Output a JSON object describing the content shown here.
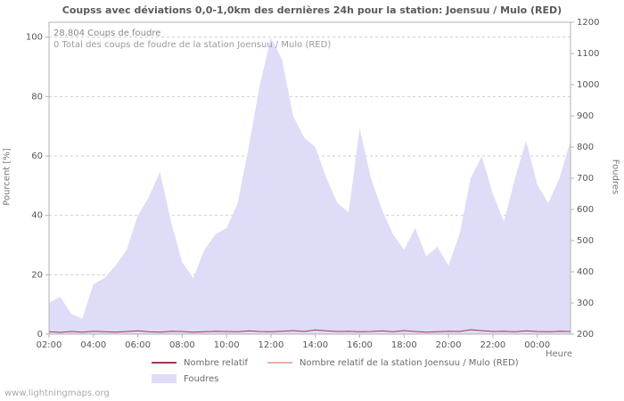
{
  "title": "Coupss avec déviations 0,0-1,0km des dernières 24h pour la station: Joensuu / Mulo (RED)",
  "annotations": {
    "line1": "28.804  Coups de foudre",
    "line2": "0 Total des coups de foudre de la station Joensuu / Mulo (RED)"
  },
  "watermark": "www.lightningmaps.org",
  "legend": {
    "items": [
      {
        "label": "Nombre relatif",
        "swatch": "line",
        "color": "#a33b4b"
      },
      {
        "label": "Nombre relatif de la station Joensuu / Mulo (RED)",
        "swatch": "line",
        "color": "#eab4a6"
      },
      {
        "label": "Foudres",
        "swatch": "area",
        "color": "#dedcf7"
      }
    ]
  },
  "chart_data": {
    "type": "area",
    "title": "Coupss avec déviations 0,0-1,0km des dernières 24h pour la station: Joensuu / Mulo (RED)",
    "categories": [
      "02:00",
      "02:30",
      "03:00",
      "03:30",
      "04:00",
      "04:30",
      "05:00",
      "05:30",
      "06:00",
      "06:30",
      "07:00",
      "07:30",
      "08:00",
      "08:30",
      "09:00",
      "09:30",
      "10:00",
      "10:30",
      "11:00",
      "11:30",
      "12:00",
      "12:30",
      "13:00",
      "13:30",
      "14:00",
      "14:30",
      "15:00",
      "15:30",
      "16:00",
      "16:30",
      "17:00",
      "17:30",
      "18:00",
      "18:30",
      "19:00",
      "19:30",
      "20:00",
      "20:30",
      "21:00",
      "21:30",
      "22:00",
      "22:30",
      "23:00",
      "23:30",
      "00:00",
      "00:30",
      "01:00",
      "01:30"
    ],
    "x_tick_labels": [
      "02:00",
      "04:00",
      "06:00",
      "08:00",
      "10:00",
      "12:00",
      "14:00",
      "16:00",
      "18:00",
      "20:00",
      "22:00",
      "00:00"
    ],
    "series": [
      {
        "name": "Foudres",
        "type": "area",
        "axis": "right",
        "color": "#dedcf7",
        "values": [
          300,
          320,
          265,
          250,
          360,
          380,
          420,
          470,
          580,
          640,
          720,
          560,
          430,
          380,
          470,
          520,
          540,
          620,
          800,
          1000,
          1150,
          1080,
          900,
          830,
          800,
          700,
          620,
          590,
          860,
          700,
          600,
          520,
          470,
          540,
          450,
          480,
          420,
          520,
          700,
          770,
          650,
          560,
          700,
          820,
          680,
          620,
          700,
          820
        ]
      },
      {
        "name": "Nombre relatif de la station Joensuu / Mulo (RED)",
        "type": "line",
        "axis": "left",
        "color": "#eab4a6",
        "values": [
          0,
          0,
          0,
          0,
          0,
          0,
          0,
          0,
          0,
          0,
          0,
          0,
          0,
          0,
          0,
          0,
          0,
          0,
          0,
          0,
          0,
          0,
          0,
          0,
          0,
          0,
          0,
          0,
          0,
          0,
          0,
          0,
          0,
          0,
          0,
          0,
          0,
          0,
          0,
          0,
          0,
          0,
          0,
          0,
          0,
          0,
          0,
          0
        ]
      },
      {
        "name": "Nombre relatif",
        "type": "line",
        "axis": "left",
        "color": "#a33b4b",
        "values": [
          0.8,
          0.6,
          0.9,
          0.7,
          1.0,
          0.8,
          0.7,
          0.9,
          1.1,
          0.8,
          0.7,
          1.0,
          0.9,
          0.7,
          0.8,
          1.0,
          0.9,
          0.8,
          1.1,
          0.9,
          0.8,
          1.0,
          1.2,
          0.9,
          1.4,
          1.1,
          0.9,
          1.0,
          0.8,
          0.9,
          1.1,
          0.8,
          1.2,
          0.9,
          0.7,
          0.8,
          1.0,
          0.9,
          1.5,
          1.2,
          0.9,
          1.0,
          0.8,
          1.1,
          0.9,
          0.8,
          1.0,
          0.9
        ]
      }
    ],
    "left_axis": {
      "label": "Pourcent  [%]",
      "min": 0,
      "max": 105,
      "ticks": [
        0,
        20,
        40,
        60,
        80,
        100
      ]
    },
    "right_axis": {
      "label": "Foudres",
      "min": 200,
      "max": 1200,
      "ticks": [
        200,
        300,
        400,
        500,
        600,
        700,
        800,
        900,
        1000,
        1100,
        1200
      ]
    },
    "x_axis": {
      "label": "Heure"
    },
    "grid": "horizontal-dashed",
    "legend_position": "bottom"
  },
  "colors": {
    "grid": "#cdcdcd",
    "border": "#b3b3b3",
    "tick_text": "#555555",
    "area_fill": "#dedcf7",
    "line_main": "#a33b4b",
    "line_station": "#eab4a6"
  }
}
